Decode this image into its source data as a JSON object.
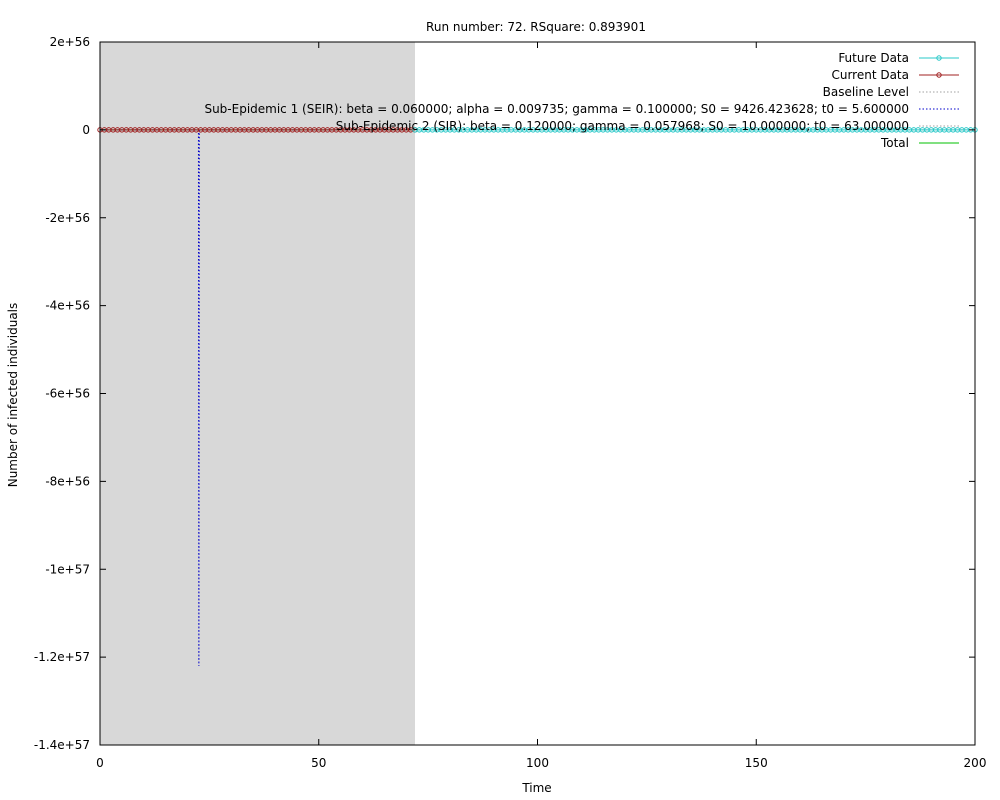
{
  "chart_data": {
    "type": "line",
    "title": "Run number: 72. RSquare: 0.893901",
    "xlabel": "Time",
    "ylabel": "Number of infected individuals",
    "xlim": [
      0,
      200
    ],
    "ylim": [
      -1.4e+57,
      2e+56
    ],
    "x_ticks": [
      0,
      50,
      100,
      150,
      200
    ],
    "x_tick_labels": [
      "0",
      "50",
      "100",
      "150",
      "200"
    ],
    "y_ticks": [
      2e+56,
      0,
      -2e+56,
      -4e+56,
      -6e+56,
      -8e+56,
      -1e+57,
      -1.2e+57,
      -1.4e+57
    ],
    "y_tick_labels": [
      "2e+56",
      "0",
      "-2e+56",
      "-4e+56",
      "-6e+56",
      "-8e+56",
      "-1e+57",
      "-1.2e+57",
      "-1.4e+57"
    ],
    "shaded_region": {
      "x_range": [
        0,
        72
      ],
      "color": "#d8d8d8"
    },
    "grid": false,
    "legend_position": "top-right",
    "series": [
      {
        "name": "Future Data",
        "color": "#29c8c8",
        "style": "line-points",
        "x_range": [
          72,
          200
        ],
        "step": 1,
        "y_constant": 0
      },
      {
        "name": "Current Data",
        "color": "#a02020",
        "style": "line-points",
        "x_range": [
          0,
          72
        ],
        "step": 1,
        "y_constant": 0
      },
      {
        "name": "Baseline Level",
        "color": "#a0a0a0",
        "style": "dotted",
        "x_range": [
          0,
          200
        ],
        "y_constant": 0
      },
      {
        "name": "Sub-Epidemic 1 (SEIR): beta = 0.060000; alpha = 0.009735; gamma = 0.100000; S0 = 9426.423628; t0 = 5.600000",
        "color": "#0000cc",
        "style": "dotted",
        "points": [
          [
            0,
            0
          ],
          [
            22.5,
            0
          ],
          [
            22.6,
            -1.22e+57
          ],
          [
            22.7,
            0
          ],
          [
            72,
            0
          ]
        ]
      },
      {
        "name": "Sub-Epidemic 2 (SIR): beta = 0.120000; gamma = 0.057968; S0 = 10.000000; t0 = 63.000000",
        "color": "#a0a0a0",
        "style": "dotted",
        "x_range": [
          63,
          72
        ],
        "y_constant": 0
      },
      {
        "name": "Total",
        "color": "#00c000",
        "style": "line",
        "x_range": [
          0,
          72
        ],
        "y_constant": 0
      }
    ]
  }
}
